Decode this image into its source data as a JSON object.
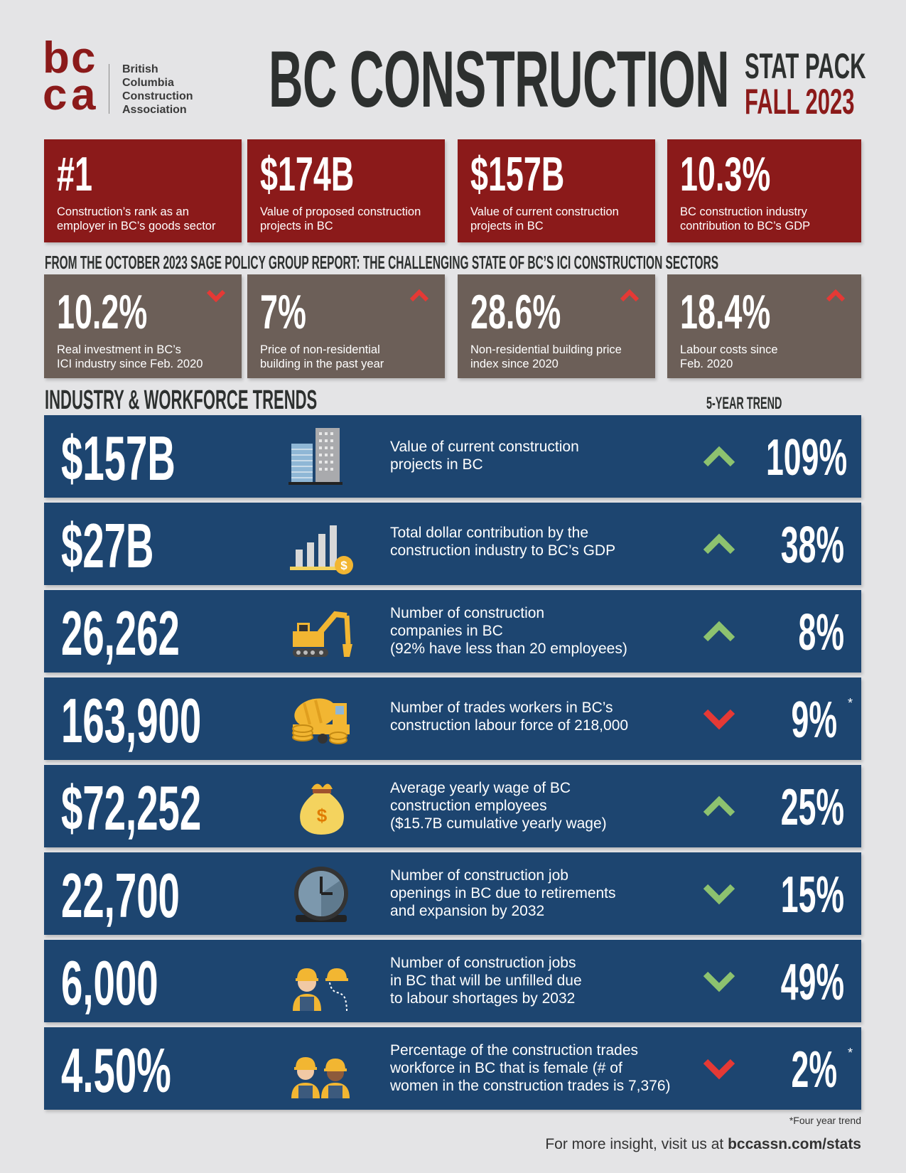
{
  "header": {
    "logo_letters": [
      "b",
      "c",
      "c",
      "a"
    ],
    "logo_text": [
      "British",
      "Columbia",
      "Construction",
      "Association"
    ],
    "title": "BC CONSTRUCTION",
    "subtitle_line1": "STAT PACK",
    "subtitle_line2": "FALL 2023"
  },
  "highlights": [
    {
      "value": "#1",
      "desc": "Construction’s rank as an employer in BC’s goods sector"
    },
    {
      "value": "$174B",
      "desc": "Value of proposed construction projects in BC"
    },
    {
      "value": "$157B",
      "desc": "Value of current construction projects in BC"
    },
    {
      "value": "10.3%",
      "desc": "BC construction industry contribution to BC’s GDP"
    }
  ],
  "sage": {
    "title": "FROM THE OCTOBER 2023 SAGE POLICY GROUP REPORT: THE CHALLENGING STATE OF BC’S ICI CONSTRUCTION SECTORS",
    "items": [
      {
        "value": "10.2%",
        "desc_line1": "Real investment in BC’s",
        "desc_line2": "ICI industry since Feb. 2020",
        "direction": "down"
      },
      {
        "value": "7%",
        "desc_line1": "Price of non-residential",
        "desc_line2": "building in the past year",
        "direction": "up"
      },
      {
        "value": "28.6%",
        "desc_line1": "Non-residential building price",
        "desc_line2": "index since 2020",
        "direction": "up"
      },
      {
        "value": "18.4%",
        "desc_line1": "Labour costs since",
        "desc_line2": "Feb. 2020",
        "direction": "up"
      }
    ]
  },
  "trends": {
    "title": "INDUSTRY & WORKFORCE TRENDS",
    "column_label": "5-YEAR TREND",
    "rows": [
      {
        "value": "$157B",
        "icon": "buildings-icon",
        "lines": [
          "Value of current construction",
          "projects in BC"
        ],
        "pct": "109%",
        "direction": "up",
        "star": ""
      },
      {
        "value": "$27B",
        "icon": "bar-chart-coin-icon",
        "lines": [
          "Total dollar contribution by the",
          "construction industry to BC’s GDP"
        ],
        "pct": "38%",
        "direction": "up",
        "star": ""
      },
      {
        "value": "26,262",
        "icon": "excavator-icon",
        "lines": [
          "Number of construction",
          "companies in BC",
          "(92% have less than 20 employees)"
        ],
        "pct": "8%",
        "direction": "up",
        "star": ""
      },
      {
        "value": "163,900",
        "icon": "cement-truck-icon",
        "lines": [
          "Number of trades workers in BC’s",
          "construction labour force of 218,000"
        ],
        "pct": "9%",
        "direction": "down",
        "star": "*"
      },
      {
        "value": "$72,252",
        "icon": "money-bag-icon",
        "lines": [
          "Average yearly wage of BC",
          "construction employees",
          "($15.7B cumulative yearly wage)"
        ],
        "pct": "25%",
        "direction": "up",
        "star": ""
      },
      {
        "value": "22,700",
        "icon": "clock-icon",
        "lines": [
          "Number of construction job",
          "openings in BC due to retirements",
          "and expansion by 2032"
        ],
        "pct": "15%",
        "direction": "down-green",
        "star": ""
      },
      {
        "value": "6,000",
        "icon": "worker-outline-icon",
        "lines": [
          "Number of construction jobs",
          "in BC that will be unfilled due",
          "to labour shortages by 2032"
        ],
        "pct": "49%",
        "direction": "down-green",
        "star": ""
      },
      {
        "value": "4.50%",
        "icon": "female-workers-icon",
        "lines": [
          "Percentage of the construction trades",
          "workforce in BC that is female (# of",
          "women in the construction trades is 7,376)"
        ],
        "pct": "2%",
        "direction": "down",
        "star": "*"
      }
    ]
  },
  "footnote": "*Four year trend",
  "footer": {
    "prefix": "For more insight, visit us at ",
    "link": "bccassn.com/stats"
  },
  "colors": {
    "red": "#8b1a1a",
    "brown": "#6c5f58",
    "navy": "#1d4570",
    "green": "#8dc26f",
    "arrow_red": "#e53935"
  }
}
